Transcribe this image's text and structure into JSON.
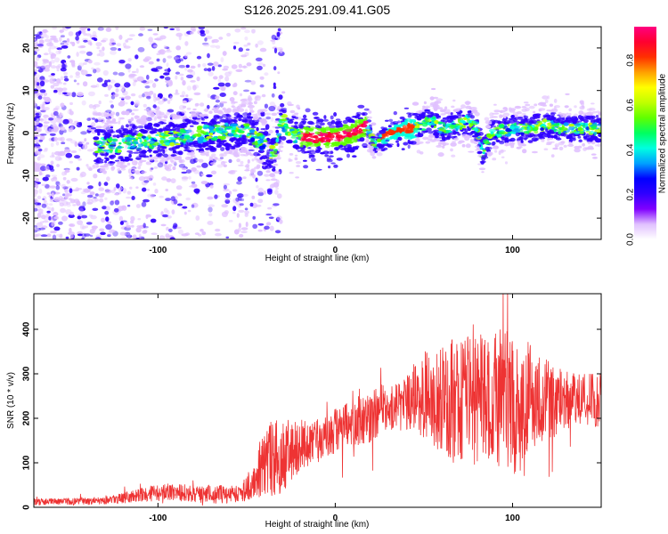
{
  "figure_title": "S126.2025.291.09.41.G05",
  "chart_data": [
    {
      "type": "heatmap",
      "name": "spectrogram",
      "xlabel": "Height of straight line (km)",
      "ylabel": "Frequency (Hz)",
      "xlim": [
        -170,
        150
      ],
      "ylim": [
        -25,
        25
      ],
      "xticks": [
        -100,
        0,
        100
      ],
      "xtick_labels": [
        "-100",
        "0",
        "100"
      ],
      "yticks": [
        -20,
        -10,
        0,
        10,
        20
      ],
      "ytick_labels": [
        "-20",
        "-10",
        "0",
        "10",
        "20"
      ],
      "colorbar": {
        "label": "Normalized spectral amplitude",
        "range": [
          0.0,
          0.95
        ],
        "ticks": [
          0.0,
          0.2,
          0.4,
          0.6,
          0.8
        ],
        "tick_labels": [
          "0.0",
          "0.2",
          "0.4",
          "0.6",
          "0.8"
        ],
        "colormap": [
          "#ffffff",
          "#e0c0ff",
          "#8000ff",
          "#3000ff",
          "#0000ff",
          "#00a0ff",
          "#00ffe0",
          "#00ff60",
          "#60ff00",
          "#c0ff00",
          "#ffff00",
          "#ffa000",
          "#ff3000",
          "#ff0030",
          "#ff0080"
        ]
      },
      "ridge": {
        "x": [
          -130,
          -110,
          -90,
          -70,
          -50,
          -40,
          -35,
          -30,
          -25,
          -20,
          -10,
          0,
          10,
          18,
          22,
          30,
          40,
          50,
          55,
          60,
          70,
          75,
          80,
          83,
          88,
          100,
          110,
          120,
          130,
          140,
          150
        ],
        "y": [
          -3,
          -2,
          -1,
          0,
          1,
          -3,
          -5,
          3,
          0,
          -1,
          -1,
          -1,
          0,
          2,
          -3,
          0,
          1,
          2,
          3,
          1,
          2,
          3,
          1,
          -5,
          0,
          1,
          1,
          2,
          1,
          1,
          1
        ]
      }
    },
    {
      "type": "line",
      "name": "snr",
      "xlabel": "Height of straight line (km)",
      "ylabel": "SNR (10 * v/v)",
      "xlim": [
        -170,
        150
      ],
      "ylim": [
        0,
        480
      ],
      "xticks": [
        -100,
        0,
        100
      ],
      "xtick_labels": [
        "-100",
        "0",
        "100"
      ],
      "yticks": [
        0,
        100,
        200,
        300,
        400
      ],
      "ytick_labels": [
        "0",
        "100",
        "200",
        "300",
        "400"
      ],
      "color": "#ee3333",
      "envelope": {
        "x": [
          -170,
          -140,
          -120,
          -110,
          -100,
          -90,
          -80,
          -70,
          -60,
          -50,
          -45,
          -40,
          -35,
          -30,
          -25,
          -20,
          -15,
          -10,
          -5,
          0,
          10,
          20,
          25,
          30,
          40,
          45,
          50,
          60,
          70,
          75,
          80,
          85,
          90,
          95,
          100,
          105,
          110,
          120,
          130,
          140,
          150
        ],
        "mean": [
          12,
          14,
          20,
          28,
          32,
          35,
          30,
          28,
          30,
          40,
          70,
          100,
          110,
          110,
          130,
          140,
          140,
          150,
          160,
          170,
          190,
          200,
          220,
          220,
          230,
          250,
          250,
          240,
          250,
          260,
          250,
          240,
          250,
          240,
          240,
          230,
          250,
          240,
          240,
          240,
          240
        ],
        "amplitude": [
          8,
          8,
          12,
          15,
          20,
          20,
          20,
          20,
          22,
          30,
          60,
          70,
          90,
          80,
          70,
          60,
          50,
          50,
          50,
          55,
          50,
          60,
          60,
          50,
          60,
          80,
          100,
          120,
          150,
          160,
          160,
          140,
          150,
          160,
          170,
          150,
          120,
          90,
          70,
          60,
          60
        ]
      }
    }
  ]
}
